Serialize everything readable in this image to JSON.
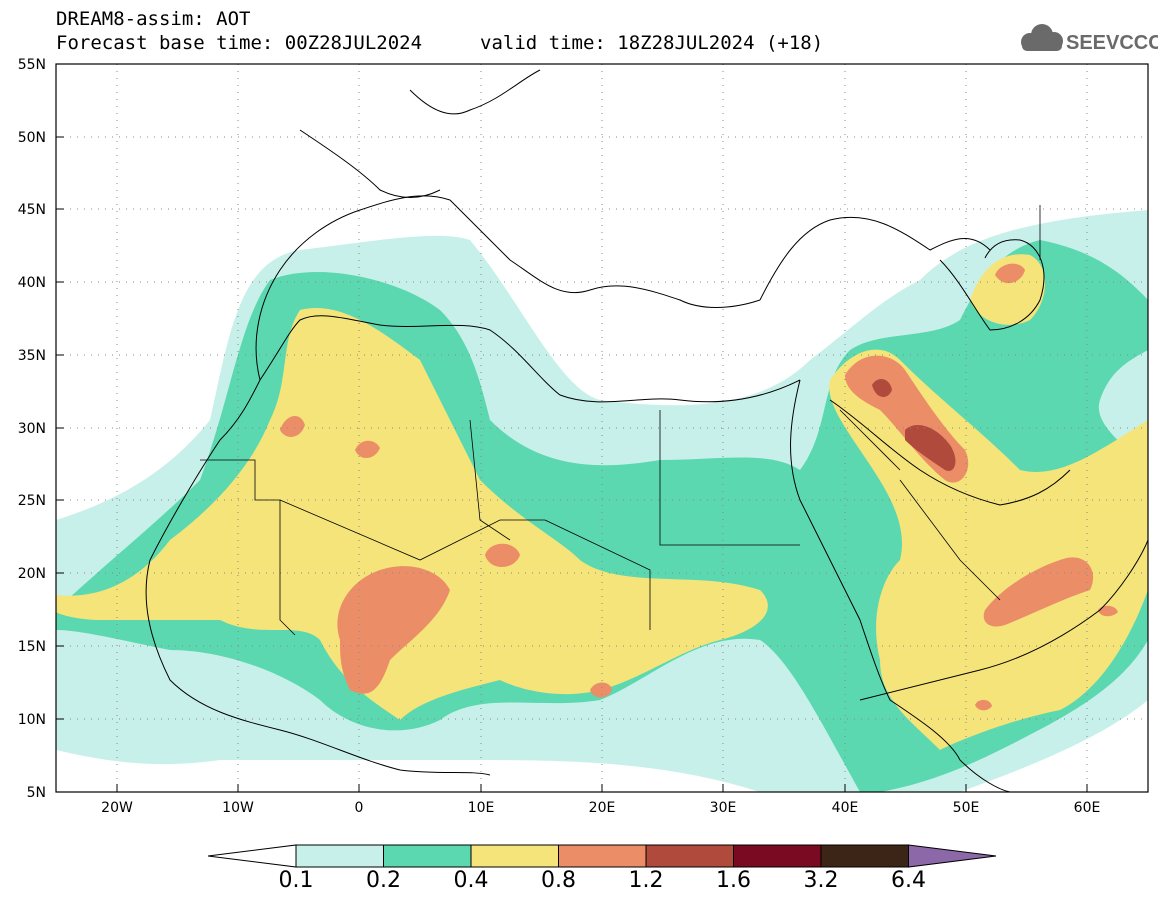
{
  "header": {
    "model_line": "DREAM8-assim: AOT",
    "base_time_line": "Forecast base time: 00Z28JUL2024",
    "valid_time_line": "valid time: 18Z28JUL2024 (+18)"
  },
  "logo": {
    "text": "SEEVCCC",
    "icon": "cloud-icon"
  },
  "axes": {
    "lat_labels": [
      "55N",
      "50N",
      "45N",
      "40N",
      "35N",
      "30N",
      "25N",
      "20N",
      "15N",
      "10N",
      "5N"
    ],
    "lon_labels": [
      "20W",
      "10W",
      "0",
      "10E",
      "20E",
      "30E",
      "40E",
      "50E",
      "60E"
    ]
  },
  "colorbar": {
    "labels": [
      "0.1",
      "0.2",
      "0.4",
      "0.8",
      "1.2",
      "1.6",
      "3.2",
      "6.4"
    ],
    "colors": [
      "#c8f0ea",
      "#5cd8b0",
      "#f5e47a",
      "#eb8e68",
      "#b04a3c",
      "#7a0a22",
      "#3c2416",
      "#8c68a8"
    ]
  },
  "chart_data": {
    "type": "heatmap",
    "variable": "AOT",
    "lon_range": [
      -25,
      65
    ],
    "lat_range": [
      5,
      55
    ],
    "levels": [
      0.1,
      0.2,
      0.4,
      0.8,
      1.2,
      1.6,
      3.2,
      6.4
    ]
  }
}
